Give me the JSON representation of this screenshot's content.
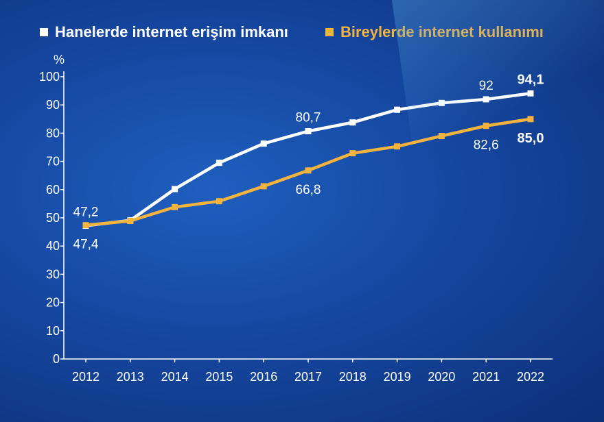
{
  "colors": {
    "series_household": "#ffffff",
    "series_individual": "#f3b33d",
    "axis": "#ffffff"
  },
  "chart_data": {
    "type": "line",
    "title": "",
    "xlabel": "",
    "ylabel": "%",
    "ylim": [
      0,
      100
    ],
    "yticks": [
      0,
      10,
      20,
      30,
      40,
      50,
      60,
      70,
      80,
      90,
      100
    ],
    "categories": [
      "2012",
      "2013",
      "2014",
      "2015",
      "2016",
      "2017",
      "2018",
      "2019",
      "2020",
      "2021",
      "2022"
    ],
    "legend_position": "top",
    "series": [
      {
        "name": "Hanelerde internet erişim imkanı",
        "color": "#ffffff",
        "values": [
          47.2,
          49.1,
          60.2,
          69.5,
          76.3,
          80.7,
          83.8,
          88.3,
          90.7,
          92.0,
          94.1
        ]
      },
      {
        "name": "Bireylerde internet kullanımı",
        "color": "#f3b33d",
        "values": [
          47.4,
          48.9,
          53.8,
          55.9,
          61.2,
          66.8,
          72.9,
          75.3,
          79.0,
          82.6,
          85.0
        ]
      }
    ],
    "data_labels": [
      {
        "series": 0,
        "index": 0,
        "text": "47,2",
        "bold": false,
        "pos": "above"
      },
      {
        "series": 1,
        "index": 0,
        "text": "47,4",
        "bold": false,
        "pos": "below"
      },
      {
        "series": 0,
        "index": 5,
        "text": "80,7",
        "bold": false,
        "pos": "above"
      },
      {
        "series": 1,
        "index": 5,
        "text": "66,8",
        "bold": false,
        "pos": "below"
      },
      {
        "series": 0,
        "index": 9,
        "text": "92",
        "bold": false,
        "pos": "above"
      },
      {
        "series": 1,
        "index": 9,
        "text": "82,6",
        "bold": false,
        "pos": "below"
      },
      {
        "series": 0,
        "index": 10,
        "text": "94,1",
        "bold": true,
        "pos": "above"
      },
      {
        "series": 1,
        "index": 10,
        "text": "85,0",
        "bold": true,
        "pos": "below"
      }
    ]
  }
}
